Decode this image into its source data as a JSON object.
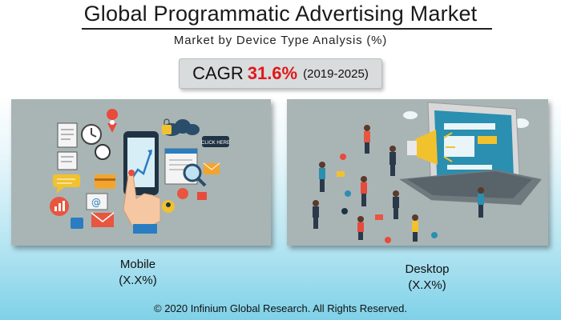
{
  "header": {
    "title": "Global Programmatic Advertising Market",
    "subtitle": "Market by Device Type Analysis (%)"
  },
  "cagr": {
    "label": "CAGR",
    "value": "31.6%",
    "period": "(2019-2025)"
  },
  "segments": [
    {
      "name": "Mobile",
      "value": "(X.X%)"
    },
    {
      "name": "Desktop",
      "value": "(X.X%)"
    }
  ],
  "illustration": {
    "click_here": "CLICK HERE"
  },
  "footer": {
    "copyright": "© 2020 Infinium Global Research. All Rights Reserved."
  },
  "colors": {
    "cagr_value": "#e0181b",
    "panel_bg": "#a9b5b5"
  }
}
